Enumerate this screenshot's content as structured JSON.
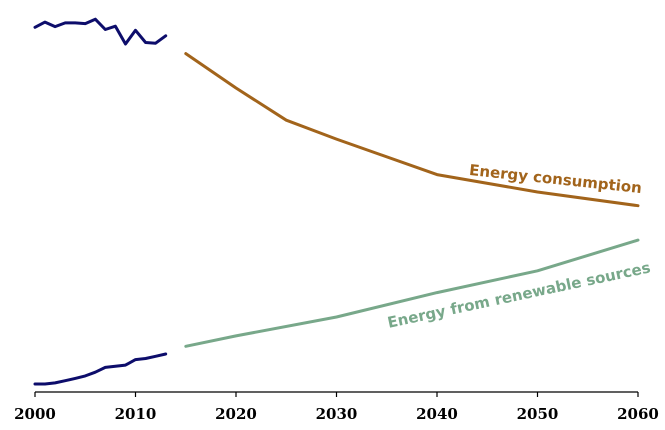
{
  "chart_data": {
    "type": "line",
    "title": "",
    "xlabel": "",
    "ylabel": "",
    "xlim": [
      2000,
      2060
    ],
    "ylim": [
      0,
      100
    ],
    "x_ticks": [
      2000,
      2010,
      2020,
      2030,
      2040,
      2050,
      2060
    ],
    "x_tick_labels": [
      "2000",
      "2010",
      "2020",
      "2030",
      "2040",
      "2050",
      "2060"
    ],
    "grid": false,
    "legend": "none",
    "series": [
      {
        "key": "historical_consumption",
        "color": "#0d0d6b",
        "points": [
          [
            2000,
            96.4
          ],
          [
            2001,
            97.8
          ],
          [
            2002,
            96.6
          ],
          [
            2003,
            97.6
          ],
          [
            2004,
            97.6
          ],
          [
            2005,
            97.4
          ],
          [
            2006,
            98.6
          ],
          [
            2007,
            95.8
          ],
          [
            2008,
            96.7
          ],
          [
            2009,
            91.9
          ],
          [
            2010,
            95.6
          ],
          [
            2011,
            92.3
          ],
          [
            2012,
            92.1
          ],
          [
            2013,
            94.1
          ]
        ]
      },
      {
        "key": "historical_renewable",
        "color": "#0d0d6b",
        "points": [
          [
            2000,
            0.0
          ],
          [
            2001,
            0.0
          ],
          [
            2002,
            0.3
          ],
          [
            2003,
            0.9
          ],
          [
            2004,
            1.5
          ],
          [
            2005,
            2.2
          ],
          [
            2006,
            3.2
          ],
          [
            2007,
            4.5
          ],
          [
            2008,
            4.8
          ],
          [
            2009,
            5.1
          ],
          [
            2010,
            6.6
          ],
          [
            2011,
            6.9
          ],
          [
            2012,
            7.5
          ],
          [
            2013,
            8.1
          ]
        ]
      },
      {
        "key": "projected_consumption",
        "name": "Energy consumption",
        "color": "#a2641b",
        "points": [
          [
            2015,
            89.3
          ],
          [
            2020,
            80.0
          ],
          [
            2025,
            71.3
          ],
          [
            2030,
            66.2
          ],
          [
            2040,
            56.6
          ],
          [
            2050,
            51.9
          ],
          [
            2060,
            48.2
          ]
        ]
      },
      {
        "key": "projected_renewable",
        "name": "Energy from renewable sources",
        "color": "#78a88a",
        "points": [
          [
            2015,
            10.2
          ],
          [
            2020,
            13.0
          ],
          [
            2030,
            18.1
          ],
          [
            2040,
            24.7
          ],
          [
            2050,
            30.6
          ],
          [
            2060,
            38.9
          ]
        ]
      }
    ]
  }
}
